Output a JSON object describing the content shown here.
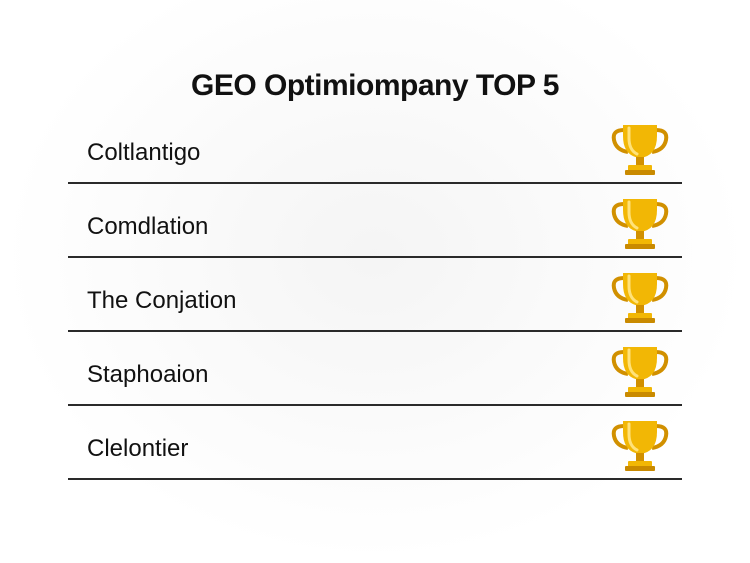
{
  "title": "GEO Optimiompany TOP 5",
  "items": [
    {
      "label": "Coltlantigo",
      "icon": "trophy-icon"
    },
    {
      "label": "Comdlation",
      "icon": "trophy-icon"
    },
    {
      "label": "The Conjation",
      "icon": "trophy-icon"
    },
    {
      "label": "Staphoaion",
      "icon": "trophy-icon"
    },
    {
      "label": "Clelontier",
      "icon": "trophy-icon"
    }
  ],
  "colors": {
    "trophy_gold": "#F2B705",
    "trophy_shade": "#D19000",
    "divider": "#2a2a2a",
    "text": "#111111"
  }
}
